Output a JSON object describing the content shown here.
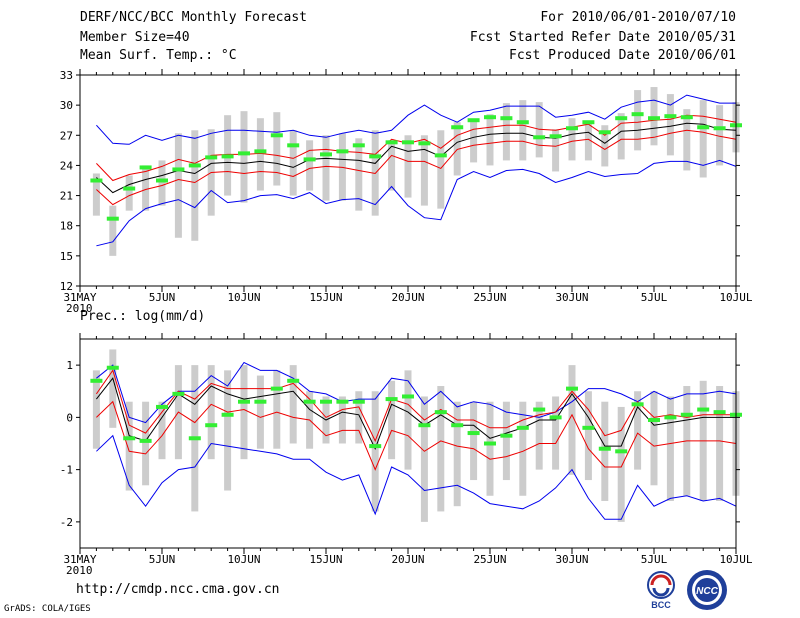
{
  "header": {
    "title": "DERF/NCC/BCC Monthly Forecast",
    "member_size": "Member Size=40",
    "variable": "Mean Surf. Temp.: °C",
    "forecast_period": "For 2010/06/01-2010/07/10",
    "start_date": "Fcst Started Refer Date 2010/05/31",
    "produced_date": "Fcst Produced Date 2010/06/01"
  },
  "footer": {
    "url": "http://cmdp.ncc.cma.gov.cn",
    "credit": "GrADS: COLA/IGES",
    "logo_left_text": "BCC",
    "logo_right_text": "NCC"
  },
  "colors": {
    "box": "#cccccc",
    "obs": "#33ee33",
    "spread": "#0000ee",
    "sd": "#ee0000",
    "mean": "#000000"
  },
  "chart_data": [
    {
      "type": "box-line",
      "title": "Mean Surf. Temp.: °C",
      "x": [
        1,
        2,
        3,
        4,
        5,
        6,
        7,
        8,
        9,
        10,
        11,
        12,
        13,
        14,
        15,
        16,
        17,
        18,
        19,
        20,
        21,
        22,
        23,
        24,
        25,
        26,
        27,
        28,
        29,
        30,
        31,
        32,
        33,
        34,
        35,
        36,
        37,
        38,
        39,
        40
      ],
      "x_tick_labels": [
        "31MAY",
        "5JUN",
        "10JUN",
        "15JUN",
        "20JUN",
        "25JUN",
        "30JUN",
        "5JUL",
        "10JUL"
      ],
      "x_tick_day_index": [
        0,
        5,
        10,
        15,
        20,
        25,
        30,
        35,
        40
      ],
      "x_sub_label": "2010",
      "ylim": [
        12,
        33
      ],
      "yticks": [
        12,
        15,
        18,
        21,
        24,
        27,
        30,
        33
      ],
      "series": [
        {
          "name": "max",
          "values": [
            28.0,
            26.2,
            26.1,
            27.0,
            26.5,
            27.0,
            26.7,
            27.2,
            27.5,
            27.5,
            27.4,
            27.3,
            27.5,
            27.0,
            26.8,
            27.2,
            27.5,
            27.2,
            27.5,
            29.0,
            30.0,
            29.0,
            28.3,
            29.3,
            29.5,
            29.9,
            29.9,
            29.9,
            28.8,
            29.0,
            29.3,
            28.6,
            29.8,
            30.3,
            30.5,
            30.0,
            31.0,
            30.6,
            30.2,
            30.2
          ]
        },
        {
          "name": "plus_sd",
          "values": [
            24.2,
            22.5,
            23.1,
            23.4,
            23.9,
            24.6,
            24.2,
            25.0,
            25.1,
            25.1,
            25.2,
            25.0,
            24.7,
            25.5,
            25.6,
            25.4,
            25.3,
            25.1,
            26.6,
            26.2,
            26.6,
            25.7,
            27.0,
            27.6,
            27.8,
            28.0,
            28.0,
            27.6,
            27.5,
            27.8,
            28.1,
            27.0,
            28.2,
            28.3,
            28.5,
            28.6,
            29.0,
            28.9,
            28.6,
            28.3
          ]
        },
        {
          "name": "mean",
          "values": [
            22.8,
            21.3,
            22.1,
            22.6,
            23.0,
            23.5,
            23.2,
            24.2,
            24.3,
            24.2,
            24.4,
            24.2,
            23.8,
            24.6,
            24.7,
            24.6,
            24.5,
            24.2,
            25.9,
            25.4,
            25.6,
            24.9,
            26.3,
            26.8,
            27.1,
            27.2,
            27.2,
            26.8,
            26.7,
            27.1,
            27.3,
            26.2,
            27.4,
            27.5,
            27.7,
            27.9,
            28.2,
            28.1,
            27.6,
            27.5
          ]
        },
        {
          "name": "minus_sd",
          "values": [
            21.6,
            20.1,
            21.0,
            21.6,
            22.0,
            22.6,
            22.3,
            23.3,
            23.4,
            23.2,
            23.4,
            23.3,
            22.9,
            23.7,
            23.9,
            23.8,
            23.5,
            23.2,
            25.0,
            24.4,
            24.4,
            23.7,
            25.6,
            26.0,
            26.2,
            26.4,
            26.4,
            26.0,
            25.9,
            26.4,
            26.6,
            25.6,
            26.6,
            26.6,
            26.8,
            27.2,
            27.5,
            27.3,
            26.9,
            26.6
          ]
        },
        {
          "name": "min",
          "values": [
            16.0,
            16.4,
            18.5,
            19.7,
            20.2,
            20.6,
            19.8,
            21.5,
            20.3,
            20.5,
            21.0,
            21.1,
            20.7,
            21.3,
            20.2,
            20.6,
            20.7,
            20.1,
            21.9,
            20.0,
            18.8,
            18.6,
            22.6,
            23.4,
            22.8,
            23.5,
            23.6,
            23.2,
            22.3,
            22.8,
            23.4,
            22.9,
            23.1,
            23.2,
            24.2,
            24.4,
            24.4,
            24.0,
            24.5,
            23.9
          ]
        },
        {
          "name": "box_high",
          "values": [
            23.2,
            20.0,
            23.0,
            24.0,
            24.5,
            27.2,
            27.5,
            27.6,
            29.0,
            29.4,
            28.7,
            29.3,
            27.5,
            26.5,
            27.0,
            27.2,
            26.7,
            27.5,
            26.5,
            27.0,
            27.0,
            27.5,
            28.3,
            28.5,
            29.1,
            30.2,
            30.5,
            30.3,
            27.6,
            28.7,
            28.2,
            28.0,
            29.2,
            31.5,
            31.8,
            31.1,
            29.6,
            30.5,
            30.0,
            30.3
          ]
        },
        {
          "name": "box_low",
          "values": [
            19.0,
            15.0,
            19.5,
            19.5,
            20.0,
            16.8,
            16.5,
            19.0,
            21.0,
            20.3,
            21.5,
            22.0,
            21.0,
            21.5,
            20.5,
            20.5,
            19.5,
            19.0,
            21.5,
            20.8,
            20.0,
            19.7,
            23.0,
            24.3,
            24.0,
            24.5,
            24.5,
            24.8,
            23.4,
            24.5,
            24.5,
            23.9,
            24.6,
            25.5,
            26.0,
            25.0,
            23.5,
            22.8,
            24.0,
            25.3
          ]
        },
        {
          "name": "observed",
          "values": [
            22.5,
            18.7,
            21.7,
            23.8,
            22.5,
            23.6,
            24.0,
            24.8,
            24.9,
            25.2,
            25.4,
            27.0,
            26.0,
            24.6,
            25.1,
            25.4,
            26.0,
            24.9,
            26.3,
            26.3,
            26.2,
            25.0,
            27.8,
            28.5,
            28.8,
            28.7,
            28.3,
            26.8,
            26.9,
            27.7,
            28.3,
            27.3,
            28.7,
            29.1,
            28.7,
            28.9,
            28.8,
            27.8,
            27.7,
            28.0
          ]
        }
      ]
    },
    {
      "type": "box-line",
      "title": "Prec.: log(mm/d)",
      "x": [
        1,
        2,
        3,
        4,
        5,
        6,
        7,
        8,
        9,
        10,
        11,
        12,
        13,
        14,
        15,
        16,
        17,
        18,
        19,
        20,
        21,
        22,
        23,
        24,
        25,
        26,
        27,
        28,
        29,
        30,
        31,
        32,
        33,
        34,
        35,
        36,
        37,
        38,
        39,
        40
      ],
      "x_tick_labels": [
        "31MAY",
        "5JUN",
        "10JUN",
        "15JUN",
        "20JUN",
        "25JUN",
        "30JUN",
        "5JUL",
        "10JUL"
      ],
      "x_tick_day_index": [
        0,
        5,
        10,
        15,
        20,
        25,
        30,
        35,
        40
      ],
      "x_sub_label": "2010",
      "ylim": [
        -2.5,
        1.5
      ],
      "yticks": [
        -2,
        -1,
        0,
        1
      ],
      "series": [
        {
          "name": "max",
          "values": [
            0.75,
            1.0,
            0.0,
            -0.1,
            0.25,
            0.5,
            0.5,
            0.8,
            0.6,
            1.05,
            0.9,
            0.9,
            0.75,
            0.5,
            0.45,
            0.3,
            0.35,
            0.35,
            0.75,
            0.7,
            0.25,
            0.5,
            0.2,
            0.3,
            0.25,
            0.1,
            0.05,
            0.0,
            0.1,
            0.3,
            0.55,
            0.55,
            0.45,
            0.3,
            0.5,
            0.35,
            0.45,
            0.45,
            0.5,
            0.45
          ]
        },
        {
          "name": "plus_sd",
          "values": [
            0.45,
            0.9,
            -0.15,
            -0.3,
            0.1,
            0.5,
            0.35,
            0.65,
            0.55,
            0.55,
            0.55,
            0.55,
            0.65,
            0.35,
            0.0,
            0.15,
            0.2,
            -0.45,
            0.35,
            0.25,
            -0.05,
            0.15,
            -0.05,
            -0.05,
            -0.2,
            -0.2,
            -0.05,
            0.05,
            0.1,
            0.5,
            0.15,
            -0.35,
            -0.25,
            0.3,
            0.0,
            0.05,
            0.0,
            0.05,
            0.05,
            0.05
          ]
        },
        {
          "name": "mean",
          "values": [
            0.35,
            0.75,
            -0.35,
            -0.45,
            0.0,
            0.45,
            0.25,
            0.6,
            0.45,
            0.35,
            0.4,
            0.45,
            0.5,
            0.15,
            -0.05,
            0.1,
            0.05,
            -0.6,
            0.25,
            0.1,
            -0.15,
            0.05,
            -0.15,
            -0.15,
            -0.4,
            -0.3,
            -0.2,
            -0.05,
            -0.05,
            0.45,
            0.0,
            -0.55,
            -0.55,
            0.2,
            -0.15,
            -0.1,
            -0.05,
            0.0,
            0.0,
            0.0
          ]
        },
        {
          "name": "minus_sd",
          "values": [
            0.0,
            0.3,
            -0.65,
            -0.7,
            -0.35,
            0.1,
            -0.1,
            0.25,
            0.1,
            0.15,
            0.0,
            0.1,
            0.0,
            -0.05,
            -0.35,
            -0.25,
            -0.25,
            -1.0,
            -0.25,
            -0.35,
            -0.65,
            -0.45,
            -0.55,
            -0.6,
            -0.8,
            -0.75,
            -0.65,
            -0.5,
            -0.5,
            0.05,
            -0.6,
            -0.95,
            -0.95,
            -0.3,
            -0.55,
            -0.5,
            -0.45,
            -0.45,
            -0.45,
            -0.5
          ]
        },
        {
          "name": "min",
          "values": [
            -0.65,
            -0.35,
            -1.3,
            -1.7,
            -1.25,
            -1.0,
            -0.95,
            -0.5,
            -0.55,
            -0.6,
            -0.65,
            -0.7,
            -0.8,
            -0.8,
            -1.05,
            -1.2,
            -1.1,
            -1.85,
            -0.95,
            -1.1,
            -1.4,
            -1.35,
            -1.3,
            -1.45,
            -1.65,
            -1.7,
            -1.75,
            -1.6,
            -1.35,
            -1.0,
            -1.55,
            -1.95,
            -1.95,
            -1.3,
            -1.7,
            -1.55,
            -1.5,
            -1.6,
            -1.55,
            -1.7
          ]
        },
        {
          "name": "box_high",
          "values": [
            0.9,
            1.3,
            0.3,
            0.3,
            0.3,
            1.0,
            1.0,
            1.0,
            0.9,
            1.0,
            0.8,
            0.9,
            1.0,
            0.5,
            0.4,
            0.4,
            0.5,
            0.5,
            0.7,
            0.9,
            0.4,
            0.6,
            0.3,
            0.3,
            0.3,
            0.3,
            0.3,
            0.3,
            0.4,
            1.0,
            0.5,
            0.3,
            0.2,
            0.5,
            0.5,
            0.4,
            0.6,
            0.7,
            0.6,
            0.5
          ]
        },
        {
          "name": "box_low",
          "values": [
            -0.6,
            -0.2,
            -1.4,
            -1.3,
            -0.8,
            -0.8,
            -1.8,
            -0.8,
            -1.4,
            -0.8,
            -0.6,
            -0.6,
            -0.5,
            -0.6,
            -0.5,
            -0.5,
            -0.5,
            -1.8,
            -0.8,
            -1.0,
            -2.0,
            -1.8,
            -1.7,
            -1.2,
            -1.5,
            -1.2,
            -1.5,
            -1.0,
            -1.0,
            -1.1,
            -1.2,
            -1.6,
            -2.0,
            -1.0,
            -1.3,
            -1.6,
            -1.5,
            -1.6,
            -1.6,
            -1.5
          ]
        },
        {
          "name": "observed",
          "values": [
            0.7,
            0.95,
            -0.4,
            -0.45,
            0.2,
            0.45,
            -0.4,
            -0.15,
            0.05,
            0.3,
            0.3,
            0.55,
            0.7,
            0.3,
            0.3,
            0.3,
            0.3,
            -0.55,
            0.35,
            0.4,
            -0.15,
            0.1,
            -0.15,
            -0.3,
            -0.5,
            -0.35,
            -0.2,
            0.15,
            0.0,
            0.55,
            -0.2,
            -0.6,
            -0.65,
            0.25,
            -0.05,
            0.0,
            0.05,
            0.15,
            0.1,
            0.05
          ]
        }
      ]
    }
  ]
}
